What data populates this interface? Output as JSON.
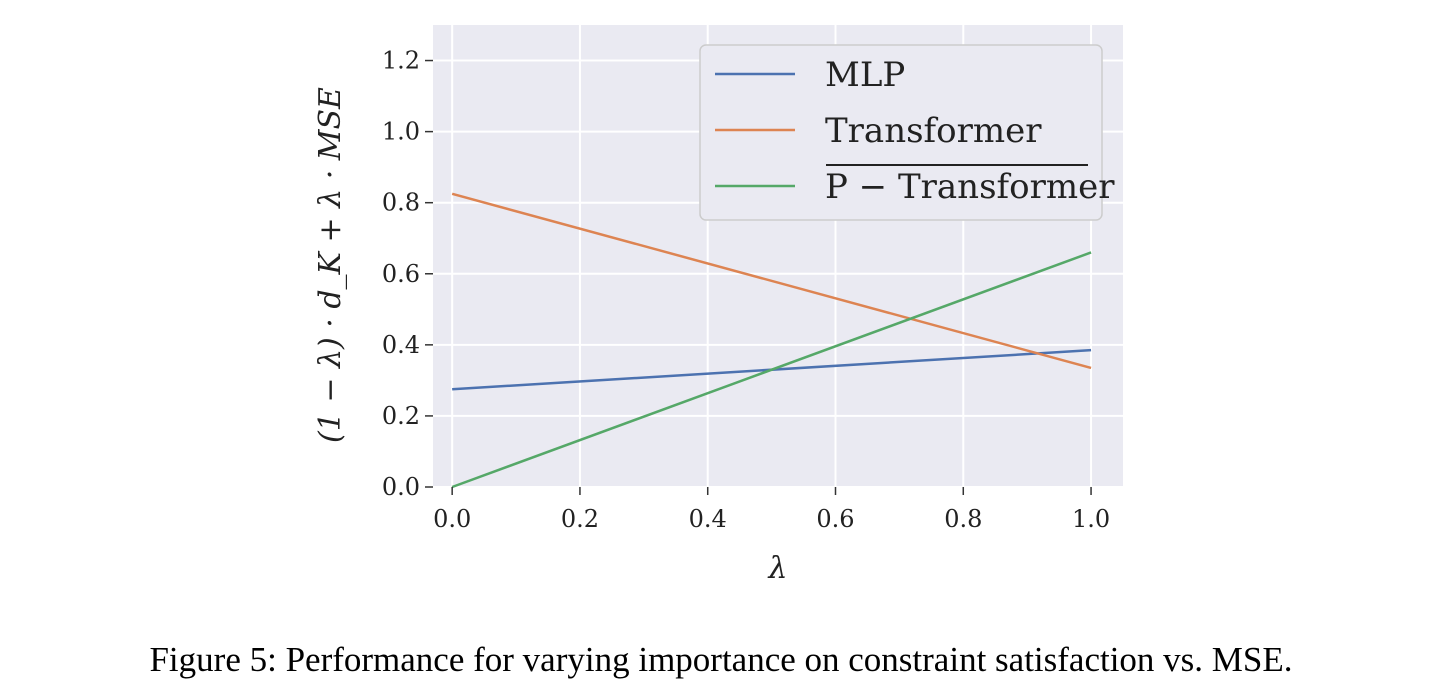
{
  "chart_data": {
    "type": "line",
    "xlabel": "λ",
    "ylabel": "(1 − λ) · d_K + λ · MSE",
    "xlim": [
      -0.03,
      1.05
    ],
    "ylim": [
      0.0,
      1.3
    ],
    "xticks": [
      "0.0",
      "0.2",
      "0.4",
      "0.6",
      "0.8",
      "1.0"
    ],
    "yticks": [
      "0.0",
      "0.2",
      "0.4",
      "0.6",
      "0.8",
      "1.0",
      "1.2"
    ],
    "grid": true,
    "legend_position": "top-right",
    "series": [
      {
        "name": "MLP",
        "color": "#4c72b0",
        "x": [
          0.0,
          1.0
        ],
        "y": [
          0.275,
          0.385
        ]
      },
      {
        "name": "Transformer",
        "color": "#dd8452",
        "x": [
          0.0,
          1.0
        ],
        "y": [
          0.825,
          0.335
        ]
      },
      {
        "name": "P − Transformer",
        "color": "#55a868",
        "x": [
          0.0,
          1.0
        ],
        "y": [
          0.0,
          0.66
        ]
      }
    ]
  },
  "caption": "Figure 5: Performance for varying importance on constraint satisfaction vs. MSE."
}
